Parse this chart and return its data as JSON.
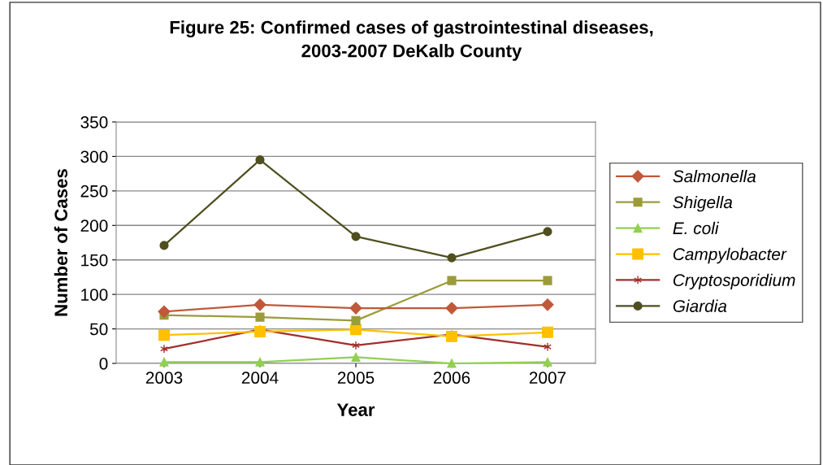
{
  "chart_data": {
    "type": "line",
    "title": "Figure 25: Confirmed cases of gastrointestinal diseases,\n2003-2007 DeKalb County",
    "xlabel": "Year",
    "ylabel": "Number of Cases",
    "categories": [
      "2003",
      "2004",
      "2005",
      "2006",
      "2007"
    ],
    "ylim": [
      0,
      350
    ],
    "yticks": [
      0,
      50,
      100,
      150,
      200,
      250,
      300,
      350
    ],
    "grid": "y",
    "legend": "right",
    "series": [
      {
        "name": "Salmonella",
        "color": "#c0583a",
        "marker": "diamond",
        "values": [
          75,
          85,
          80,
          80,
          85
        ]
      },
      {
        "name": "Shigella",
        "color": "#9b9b3a",
        "marker": "square",
        "values": [
          70,
          67,
          62,
          120,
          120
        ]
      },
      {
        "name": "E. coli",
        "color": "#92d050",
        "marker": "triangle",
        "values": [
          2,
          2,
          9,
          0,
          2
        ]
      },
      {
        "name": "Campylobacter",
        "color": "#ffc000",
        "marker": "square",
        "values": [
          41,
          46,
          49,
          39,
          45
        ]
      },
      {
        "name": "Cryptosporidium",
        "color": "#a0302a",
        "marker": "cross",
        "values": [
          21,
          49,
          26,
          42,
          24
        ]
      },
      {
        "name": "Giardia",
        "color": "#4f4f1f",
        "marker": "circle",
        "values": [
          171,
          295,
          184,
          153,
          191
        ]
      }
    ]
  }
}
